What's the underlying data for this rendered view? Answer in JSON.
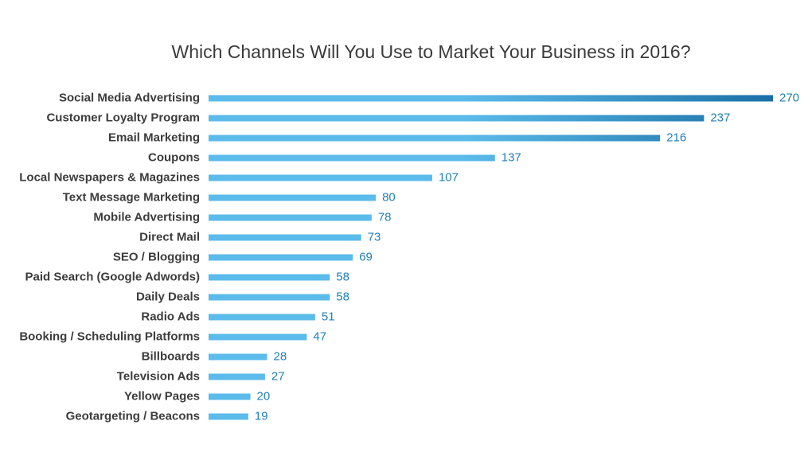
{
  "chart_data": {
    "type": "bar",
    "orientation": "horizontal",
    "title": "Which Channels Will You Use to Market Your Business in 2016?",
    "xlabel": "",
    "ylabel": "",
    "xlim": [
      0,
      270
    ],
    "grid": false,
    "legend": "none",
    "categories": [
      "Social Media Advertising",
      "Customer Loyalty Program",
      "Email Marketing",
      "Coupons",
      "Local Newspapers & Magazines",
      "Text Message Marketing",
      "Mobile Advertising",
      "Direct Mail",
      "SEO / Blogging",
      "Paid Search (Google Adwords)",
      "Daily Deals",
      "Radio Ads",
      "Booking / Scheduling Platforms",
      "Billboards",
      "Television Ads",
      "Yellow Pages",
      "Geotargeting / Beacons"
    ],
    "values": [
      270,
      237,
      216,
      137,
      107,
      80,
      78,
      73,
      69,
      58,
      58,
      51,
      47,
      28,
      27,
      20,
      19
    ],
    "colors": {
      "bar_light": "#5bbbea",
      "bar_dark": "#1a6fa6",
      "value_text": "#1f7fb8",
      "label_text": "#3c3c3c"
    }
  }
}
